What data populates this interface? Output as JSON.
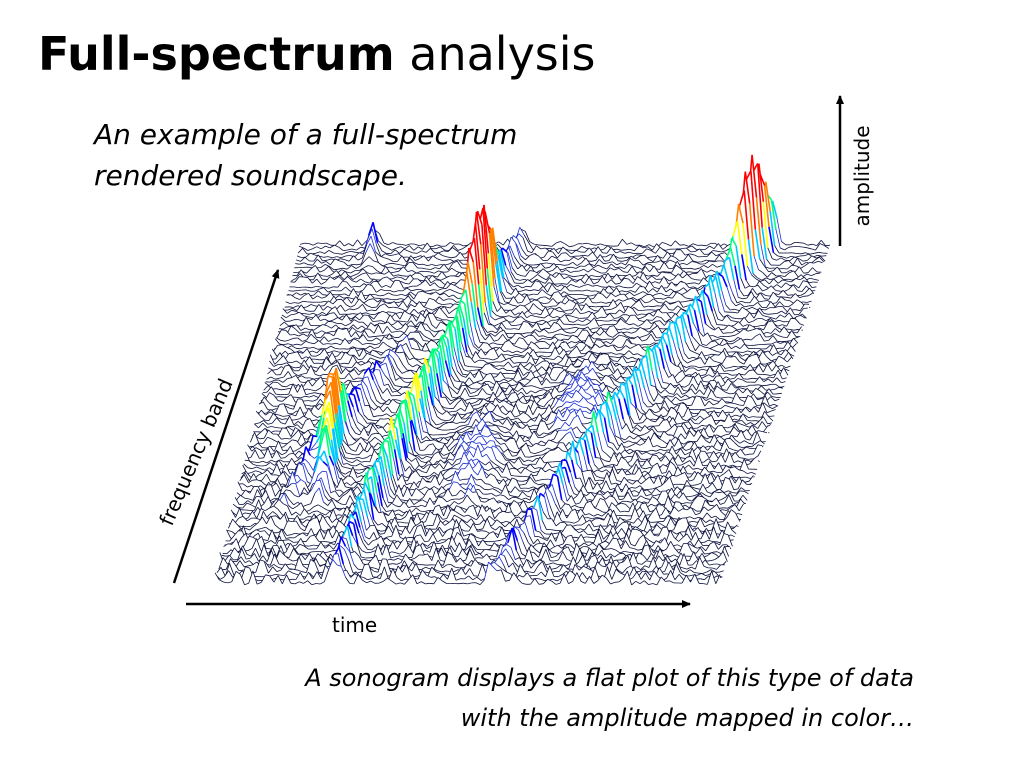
{
  "slide": {
    "title_bold": "Full-spectrum",
    "title_rest": "analysis",
    "subtitle_line1": "An example of a full-spectrum",
    "subtitle_line2": "rendered soundscape.",
    "caption_line1": "A sonogram displays a flat plot of this type of data",
    "caption_line2": "with the amplitude mapped in color…"
  },
  "axes": {
    "time": "time",
    "frequency": "frequency band",
    "amplitude": "amplitude"
  },
  "colors": {
    "trace_line": "#0a0f3c",
    "low_amplitude": "#1a2fd0",
    "high_amplitude_scale": [
      "#0000ff",
      "#00c8ff",
      "#00ff80",
      "#ffff00",
      "#ff8000",
      "#ff0000"
    ]
  }
}
